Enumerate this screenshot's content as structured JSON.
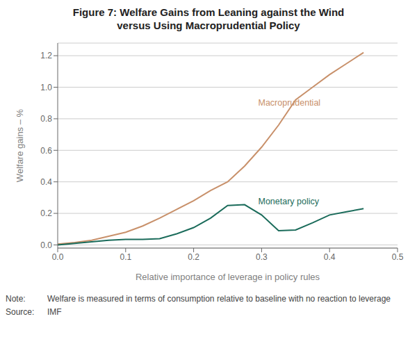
{
  "chart_data": {
    "type": "line",
    "title": "Figure 7: Welfare Gains from Leaning against the Wind\nversus Using Macroprudential Policy",
    "x_label": "Relative importance of leverage in policy rules",
    "y_label": "Welfare gains – %",
    "xlim": [
      0.0,
      0.5
    ],
    "ylim": [
      -0.02,
      1.28
    ],
    "xticks": [
      {
        "value": 0.0,
        "label": "0.0"
      },
      0.1,
      0.2,
      0.3,
      0.4,
      0.5
    ],
    "yticks": [
      {
        "value": 0.0,
        "label": "0.0"
      },
      0.2,
      0.4,
      0.6,
      0.8,
      {
        "value": 1.0,
        "label": "1.0"
      },
      1.2
    ],
    "grid": true,
    "series": [
      {
        "color": "#C8906A",
        "x": [
          0.0,
          0.025,
          0.05,
          0.075,
          0.1,
          0.125,
          0.15,
          0.175,
          0.2,
          0.225,
          0.25,
          0.275,
          0.3,
          0.325,
          0.35,
          0.375,
          0.4,
          0.425,
          0.45
        ],
        "values": [
          0.005,
          0.015,
          0.03,
          0.055,
          0.08,
          0.12,
          0.17,
          0.225,
          0.28,
          0.345,
          0.4,
          0.5,
          0.62,
          0.76,
          0.92,
          1.0,
          1.08,
          1.15,
          1.22
        ]
      },
      {
        "color": "#1A6B5A",
        "x": [
          0.0,
          0.025,
          0.05,
          0.075,
          0.1,
          0.11,
          0.125,
          0.15,
          0.175,
          0.2,
          0.225,
          0.25,
          0.275,
          0.3,
          0.325,
          0.35,
          0.375,
          0.4,
          0.425,
          0.45
        ],
        "values": [
          0.0,
          0.01,
          0.02,
          0.03,
          0.035,
          0.035,
          0.035,
          0.04,
          0.07,
          0.11,
          0.17,
          0.25,
          0.255,
          0.19,
          0.09,
          0.095,
          0.14,
          0.19,
          0.21,
          0.23
        ]
      }
    ],
    "annotations": [
      {
        "text": "Macroprudential",
        "x": 0.295,
        "y": 0.9,
        "color": "#C8906A"
      },
      {
        "text": "Monetary policy",
        "x": 0.295,
        "y": 0.27,
        "color": "#1A6B5A"
      }
    ],
    "notes": [
      {
        "label": "Note:",
        "text": "Welfare is measured in terms of consumption relative to baseline with no reaction to leverage"
      },
      {
        "label": "Source:",
        "text": "IMF"
      }
    ]
  }
}
